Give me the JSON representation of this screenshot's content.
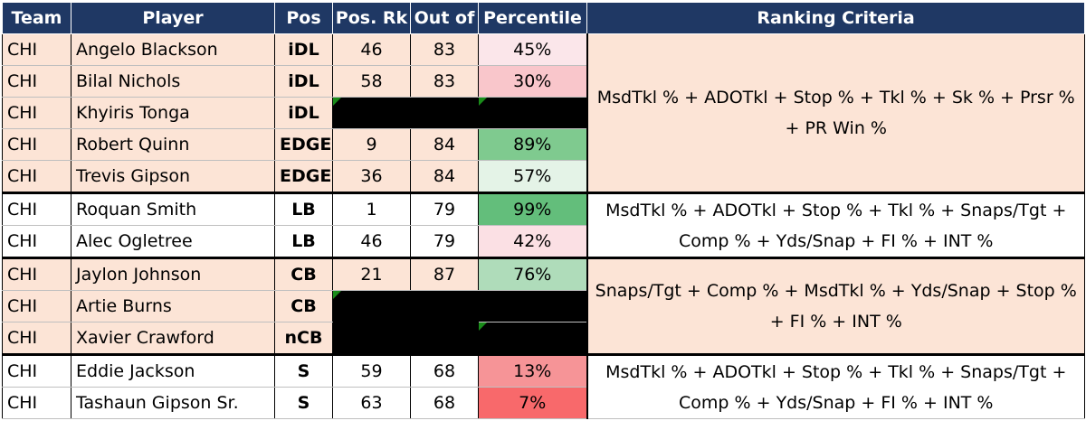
{
  "headers": [
    "Team",
    "Player",
    "Pos",
    "Pos. Rk",
    "Out of",
    "Percentile",
    "Ranking Criteria"
  ],
  "rows": [
    {
      "team": "CHI",
      "player": "Angelo Blackson",
      "pos": "iDL",
      "rank": "46",
      "outof": "83",
      "pct": "45%",
      "pct_color": "#fbe6ea"
    },
    {
      "team": "CHI",
      "player": "Bilal Nichols",
      "pos": "iDL",
      "rank": "58",
      "outof": "83",
      "pct": "30%",
      "pct_color": "#f9c6cb"
    },
    {
      "team": "CHI",
      "player": "Khyiris Tonga",
      "pos": "iDL",
      "rank": "",
      "outof": "",
      "pct": "",
      "pct_color": ""
    },
    {
      "team": "CHI",
      "player": "Robert Quinn",
      "pos": "EDGE",
      "rank": "9",
      "outof": "84",
      "pct": "89%",
      "pct_color": "#7fca8f"
    },
    {
      "team": "CHI",
      "player": "Trevis Gipson",
      "pos": "EDGE",
      "rank": "36",
      "outof": "84",
      "pct": "57%",
      "pct_color": "#e4f3e7"
    },
    {
      "team": "CHI",
      "player": "Roquan Smith",
      "pos": "LB",
      "rank": "1",
      "outof": "79",
      "pct": "99%",
      "pct_color": "#63be7b"
    },
    {
      "team": "CHI",
      "player": "Alec Ogletree",
      "pos": "LB",
      "rank": "46",
      "outof": "79",
      "pct": "42%",
      "pct_color": "#fbe0e4"
    },
    {
      "team": "CHI",
      "player": "Jaylon Johnson",
      "pos": "CB",
      "rank": "21",
      "outof": "87",
      "pct": "76%",
      "pct_color": "#afdcba"
    },
    {
      "team": "CHI",
      "player": "Artie Burns",
      "pos": "CB",
      "rank": "",
      "outof": "",
      "pct": "",
      "pct_color": ""
    },
    {
      "team": "CHI",
      "player": "Xavier Crawford",
      "pos": "nCB",
      "rank": "",
      "outof": "",
      "pct": "",
      "pct_color": ""
    },
    {
      "team": "CHI",
      "player": "Eddie Jackson",
      "pos": "S",
      "rank": "59",
      "outof": "68",
      "pct": "13%",
      "pct_color": "#f69497"
    },
    {
      "team": "CHI",
      "player": "Tashaun Gipson Sr.",
      "pos": "S",
      "rank": "63",
      "outof": "68",
      "pct": "7%",
      "pct_color": "#f8696b"
    }
  ],
  "criteria": [
    "MsdTkl % + ADOTkl + Stop % + Tkl % + Sk % + Prsr % + PR Win %",
    "MsdTkl % + ADOTkl + Stop % + Tkl % + Snaps/Tgt + Comp % + Yds/Snap + FI % + INT %",
    "Snaps/Tgt + Comp % + MsdTkl % + Yds/Snap + Stop % + FI % + INT %",
    "MsdTkl % + ADOTkl + Stop % + Tkl % + Snaps/Tgt + Comp % + Yds/Snap + FI % + INT %"
  ]
}
